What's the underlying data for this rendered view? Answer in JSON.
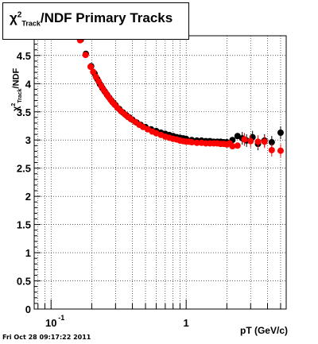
{
  "title": {
    "chi": "χ",
    "sup": "2",
    "sub": "Track",
    "rest": "/NDF  Primary Tracks"
  },
  "ylabel": {
    "chi": "χ",
    "sup": "2",
    "sub": "Track",
    "rest": "/NDF"
  },
  "footer": "Fri Oct 28 09:17:22 2011",
  "colors": {
    "series_black": "#000000",
    "series_red": "#ff0000"
  },
  "chart_data": {
    "type": "scatter",
    "xlabel": "pT (GeV/c)",
    "xscale": "log",
    "xlim": [
      0.075,
      5.5
    ],
    "ylim": [
      0,
      4.85
    ],
    "grid": true,
    "x_tick_labels": [
      {
        "value": 0.1,
        "base": "10",
        "exp": "-1"
      },
      {
        "value": 1,
        "base": "1",
        "exp": ""
      }
    ],
    "y_tick_labels": [
      0,
      0.5,
      1,
      1.5,
      2,
      2.5,
      3,
      3.5,
      4,
      4.5
    ],
    "series": [
      {
        "color": "black",
        "points": [
          {
            "x": 0.166,
            "y": 4.78
          },
          {
            "x": 0.181,
            "y": 4.53
          },
          {
            "x": 0.198,
            "y": 4.31
          },
          {
            "x": 0.21,
            "y": 4.18
          },
          {
            "x": 0.22,
            "y": 4.08
          },
          {
            "x": 0.23,
            "y": 3.99
          },
          {
            "x": 0.24,
            "y": 3.92
          },
          {
            "x": 0.25,
            "y": 3.86
          },
          {
            "x": 0.26,
            "y": 3.8
          },
          {
            "x": 0.27,
            "y": 3.75
          },
          {
            "x": 0.28,
            "y": 3.7
          },
          {
            "x": 0.29,
            "y": 3.66
          },
          {
            "x": 0.3,
            "y": 3.62
          },
          {
            "x": 0.32,
            "y": 3.55
          },
          {
            "x": 0.34,
            "y": 3.49
          },
          {
            "x": 0.36,
            "y": 3.44
          },
          {
            "x": 0.38,
            "y": 3.4
          },
          {
            "x": 0.4,
            "y": 3.36
          },
          {
            "x": 0.43,
            "y": 3.31
          },
          {
            "x": 0.46,
            "y": 3.27
          },
          {
            "x": 0.5,
            "y": 3.23
          },
          {
            "x": 0.55,
            "y": 3.19
          },
          {
            "x": 0.6,
            "y": 3.16
          },
          {
            "x": 0.65,
            "y": 3.13
          },
          {
            "x": 0.7,
            "y": 3.11
          },
          {
            "x": 0.75,
            "y": 3.09
          },
          {
            "x": 0.8,
            "y": 3.07
          },
          {
            "x": 0.85,
            "y": 3.05
          },
          {
            "x": 0.9,
            "y": 3.04
          },
          {
            "x": 0.95,
            "y": 3.03
          },
          {
            "x": 1.0,
            "y": 3.02
          },
          {
            "x": 1.1,
            "y": 3.0
          },
          {
            "x": 1.2,
            "y": 2.99
          },
          {
            "x": 1.3,
            "y": 2.99
          },
          {
            "x": 1.4,
            "y": 2.98
          },
          {
            "x": 1.5,
            "y": 2.98
          },
          {
            "x": 1.6,
            "y": 2.97
          },
          {
            "x": 1.7,
            "y": 2.97
          },
          {
            "x": 1.8,
            "y": 2.97
          },
          {
            "x": 1.9,
            "y": 2.96
          },
          {
            "x": 2.0,
            "y": 2.96
          },
          {
            "x": 2.2,
            "y": 3.0
          },
          {
            "x": 2.4,
            "y": 3.07
          },
          {
            "x": 2.6,
            "y": 3.03
          },
          {
            "x": 2.8,
            "y": 2.99
          },
          {
            "x": 3.1,
            "y": 3.05
          },
          {
            "x": 3.4,
            "y": 2.93
          },
          {
            "x": 3.8,
            "y": 2.99
          },
          {
            "x": 4.3,
            "y": 2.96
          },
          {
            "x": 5.0,
            "y": 3.13
          }
        ]
      },
      {
        "color": "red",
        "points": [
          {
            "x": 0.164,
            "y": 4.77
          },
          {
            "x": 0.18,
            "y": 4.51
          },
          {
            "x": 0.196,
            "y": 4.3
          },
          {
            "x": 0.205,
            "y": 4.21
          },
          {
            "x": 0.215,
            "y": 4.12
          },
          {
            "x": 0.225,
            "y": 4.04
          },
          {
            "x": 0.235,
            "y": 3.96
          },
          {
            "x": 0.245,
            "y": 3.89
          },
          {
            "x": 0.255,
            "y": 3.83
          },
          {
            "x": 0.265,
            "y": 3.77
          },
          {
            "x": 0.275,
            "y": 3.72
          },
          {
            "x": 0.285,
            "y": 3.67
          },
          {
            "x": 0.295,
            "y": 3.63
          },
          {
            "x": 0.31,
            "y": 3.57
          },
          {
            "x": 0.33,
            "y": 3.51
          },
          {
            "x": 0.35,
            "y": 3.46
          },
          {
            "x": 0.37,
            "y": 3.41
          },
          {
            "x": 0.39,
            "y": 3.37
          },
          {
            "x": 0.42,
            "y": 3.32
          },
          {
            "x": 0.45,
            "y": 3.27
          },
          {
            "x": 0.48,
            "y": 3.23
          },
          {
            "x": 0.52,
            "y": 3.19
          },
          {
            "x": 0.56,
            "y": 3.15
          },
          {
            "x": 0.6,
            "y": 3.12
          },
          {
            "x": 0.65,
            "y": 3.09
          },
          {
            "x": 0.7,
            "y": 3.06
          },
          {
            "x": 0.75,
            "y": 3.04
          },
          {
            "x": 0.8,
            "y": 3.02
          },
          {
            "x": 0.85,
            "y": 3.01
          },
          {
            "x": 0.9,
            "y": 2.99
          },
          {
            "x": 0.95,
            "y": 2.98
          },
          {
            "x": 1.0,
            "y": 2.97
          },
          {
            "x": 1.05,
            "y": 2.97
          },
          {
            "x": 1.1,
            "y": 2.96
          },
          {
            "x": 1.2,
            "y": 2.95
          },
          {
            "x": 1.3,
            "y": 2.95
          },
          {
            "x": 1.4,
            "y": 2.94
          },
          {
            "x": 1.5,
            "y": 2.94
          },
          {
            "x": 1.6,
            "y": 2.94
          },
          {
            "x": 1.7,
            "y": 2.94
          },
          {
            "x": 1.8,
            "y": 2.93
          },
          {
            "x": 1.9,
            "y": 2.93
          },
          {
            "x": 2.0,
            "y": 2.92
          },
          {
            "x": 2.1,
            "y": 2.94
          },
          {
            "x": 2.2,
            "y": 2.89
          },
          {
            "x": 2.4,
            "y": 2.9
          },
          {
            "x": 2.7,
            "y": 3.01
          },
          {
            "x": 3.0,
            "y": 2.98
          },
          {
            "x": 3.4,
            "y": 2.97
          },
          {
            "x": 3.8,
            "y": 2.97
          },
          {
            "x": 4.3,
            "y": 2.82
          },
          {
            "x": 5.0,
            "y": 2.81
          }
        ]
      }
    ]
  }
}
